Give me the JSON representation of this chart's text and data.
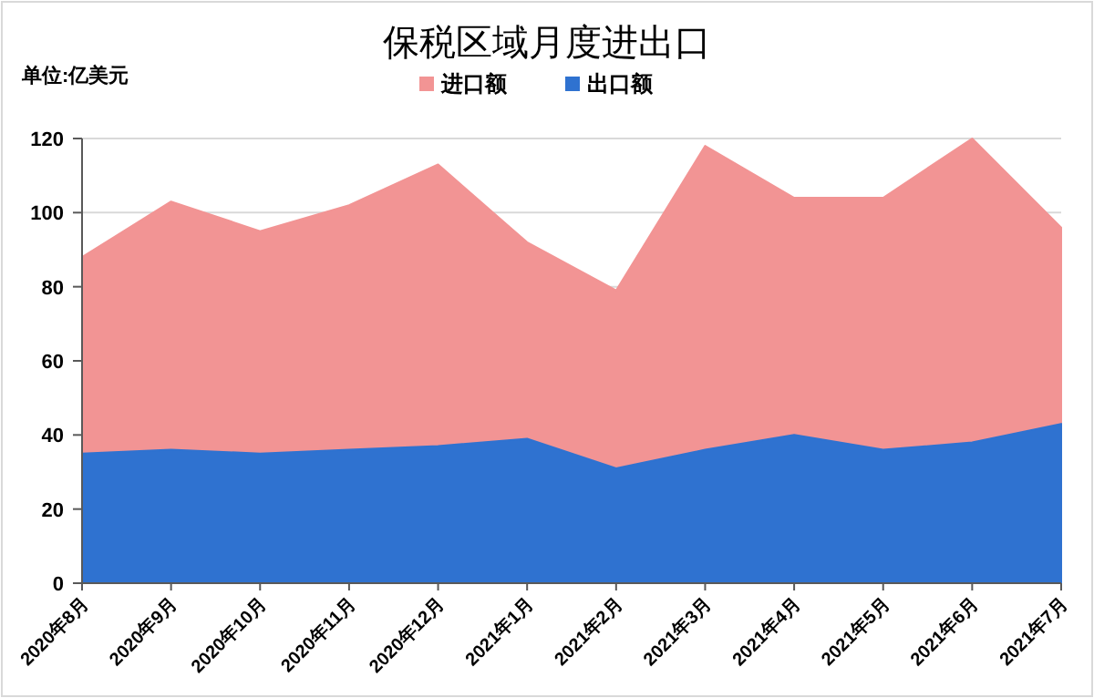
{
  "chart_data": {
    "type": "area",
    "title": "保税区域月度进出口",
    "annotations": [
      "单位:亿美元"
    ],
    "categories": [
      "2020年8月",
      "2020年9月",
      "2020年10月",
      "2020年11月",
      "2020年12月",
      "2021年1月",
      "2021年2月",
      "2021年3月",
      "2021年4月",
      "2021年5月",
      "2021年6月",
      "2021年7月"
    ],
    "series": [
      {
        "name": "出口额",
        "color": "#2f72d0",
        "values": [
          35,
          36,
          35,
          36,
          37,
          39,
          31,
          36,
          40,
          36,
          38,
          43
        ]
      },
      {
        "name": "进口额",
        "color": "#f29494",
        "values": [
          88,
          103,
          95,
          102,
          113,
          92,
          79,
          118,
          104,
          104,
          120,
          96
        ]
      }
    ],
    "ylim": [
      0,
      120
    ],
    "yticks": [
      0,
      20,
      40,
      60,
      80,
      100,
      120
    ],
    "grid": "y",
    "legend": "top"
  }
}
